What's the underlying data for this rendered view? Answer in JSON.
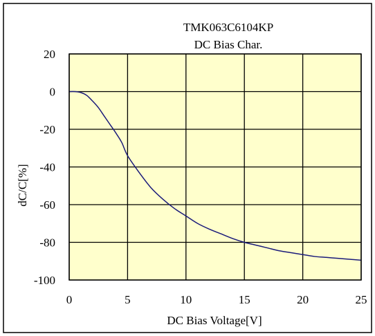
{
  "chart_data": {
    "type": "line",
    "title": "TMK063C6104KP",
    "subtitle": "DC Bias Char.",
    "xlabel": "DC Bias Voltage[V]",
    "ylabel": "dC/C[%]",
    "xlim": [
      0,
      25
    ],
    "ylim": [
      -100,
      20
    ],
    "x_ticks": [
      "0",
      "5",
      "10",
      "15",
      "20",
      "25"
    ],
    "y_ticks": [
      "20",
      "0",
      "-20",
      "-40",
      "-60",
      "-80",
      "-100"
    ],
    "grid": true,
    "series": [
      {
        "x": [
          0,
          0.5,
          1,
          1.5,
          2,
          2.5,
          3,
          3.5,
          4,
          4.5,
          5,
          6,
          7,
          8,
          9,
          10,
          11,
          12,
          13,
          14,
          15,
          16,
          17,
          18,
          19,
          20,
          21,
          22,
          23,
          24,
          25
        ],
        "values": [
          0,
          0,
          -0.5,
          -2,
          -5,
          -8.5,
          -13,
          -17.5,
          -22,
          -27,
          -34,
          -43,
          -51,
          -57,
          -62,
          -66,
          -70,
          -73,
          -75.5,
          -78,
          -80,
          -81.5,
          -83,
          -84.5,
          -85.5,
          -86.5,
          -87.5,
          -88,
          -88.5,
          -89,
          -89.5
        ]
      }
    ],
    "colors": {
      "line": "#1a1a7a",
      "plot_background": "#ffffcc",
      "grid": "#000000"
    }
  }
}
